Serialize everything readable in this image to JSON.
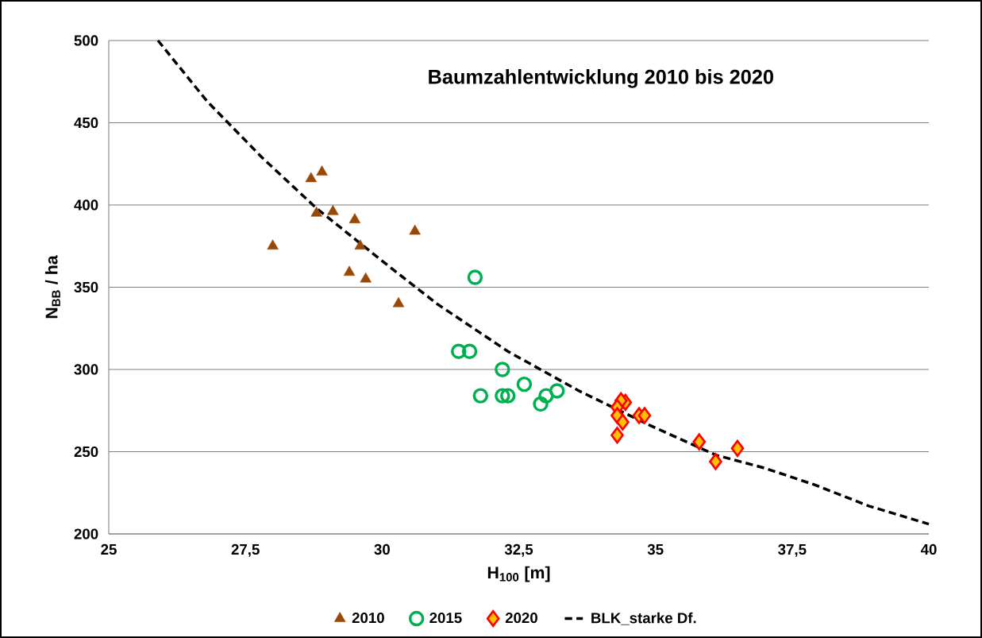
{
  "chart_data": {
    "type": "scatter",
    "title": "Baumzahlentwicklung 2010 bis 2020",
    "xlabel": "H$_{100}$ [m]",
    "ylabel": "N$_{BB}$ / ha",
    "xlim": [
      25,
      40
    ],
    "xticks": [
      25,
      {
        "value": 27.5,
        "label": "27,5"
      },
      30,
      {
        "value": 32.5,
        "label": "32,5"
      },
      35,
      {
        "value": 37.5,
        "label": "37,5"
      },
      40
    ],
    "ylim": [
      200,
      500
    ],
    "yticks": [
      200,
      250,
      300,
      350,
      400,
      450,
      500
    ],
    "grid": "y",
    "legend": "bottom",
    "series": [
      {
        "name": "2010",
        "marker": "triangle",
        "color": "#984807",
        "x": [
          28.0,
          28.7,
          28.9,
          28.8,
          29.1,
          29.5,
          29.6,
          30.6,
          29.4,
          29.7,
          30.3
        ],
        "values": [
          375,
          416,
          420,
          395,
          396,
          391,
          375,
          384,
          359,
          355,
          340
        ]
      },
      {
        "name": "2015",
        "marker": "circle",
        "color": "#00b050",
        "x": [
          31.7,
          31.4,
          31.6,
          32.2,
          32.6,
          31.8,
          32.2,
          32.3,
          33.0,
          32.9,
          33.2
        ],
        "values": [
          356,
          311,
          311,
          300,
          291,
          284,
          284,
          284,
          284,
          279,
          287
        ]
      },
      {
        "name": "2020",
        "marker": "diamond",
        "color": "#ff0000",
        "x": [
          34.45,
          34.37,
          34.3,
          34.3,
          34.4,
          34.3,
          34.7,
          34.8,
          35.8,
          36.5,
          36.1
        ],
        "values": [
          280,
          281,
          277,
          272,
          268,
          260,
          272,
          272,
          256,
          252,
          244
        ]
      },
      {
        "name": "BLK_starke Df.",
        "type": "line",
        "marker": "none",
        "line_style": "dashed",
        "color": "#000000",
        "x": [
          25.9,
          26.8,
          27.8,
          28.8,
          30.0,
          31.0,
          32.3,
          33.6,
          34.9,
          36.1,
          37.0,
          37.9,
          38.9,
          40.0
        ],
        "values": [
          500,
          463,
          429,
          398,
          366,
          340,
          311,
          287,
          266,
          248,
          240,
          230,
          217,
          206
        ]
      }
    ]
  }
}
